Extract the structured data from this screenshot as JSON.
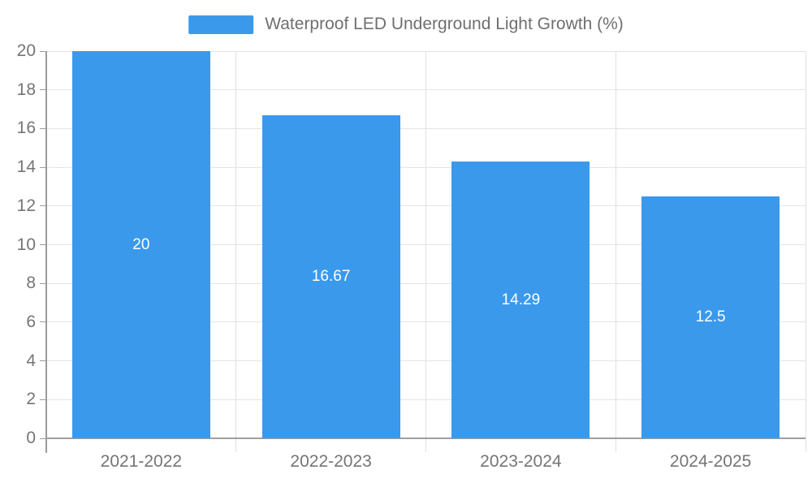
{
  "chart_data": {
    "type": "bar",
    "title": "Waterproof LED Underground Light Growth (%)",
    "categories": [
      "2021-2022",
      "2022-2023",
      "2023-2024",
      "2024-2025"
    ],
    "values": [
      20,
      16.67,
      14.29,
      12.5
    ],
    "value_labels": [
      "20",
      "16.67",
      "14.29",
      "12.5"
    ],
    "legend": {
      "label": "Waterproof LED Underground Light Growth (%)",
      "position": "top-center"
    },
    "xlabel": "",
    "ylabel": "",
    "ylim": [
      0,
      20
    ],
    "ytick_step": 2,
    "yticks": [
      0,
      2,
      4,
      6,
      8,
      10,
      12,
      14,
      16,
      18,
      20
    ],
    "grid": true,
    "colors": {
      "bar": "#3b99ec",
      "bar_value_text": "#ffffff",
      "axis_line": "#9b9b9b",
      "grid_line": "#e4e4e4",
      "tick_text": "#757575",
      "legend_text": "#6f6f6f",
      "background": "#ffffff"
    }
  }
}
